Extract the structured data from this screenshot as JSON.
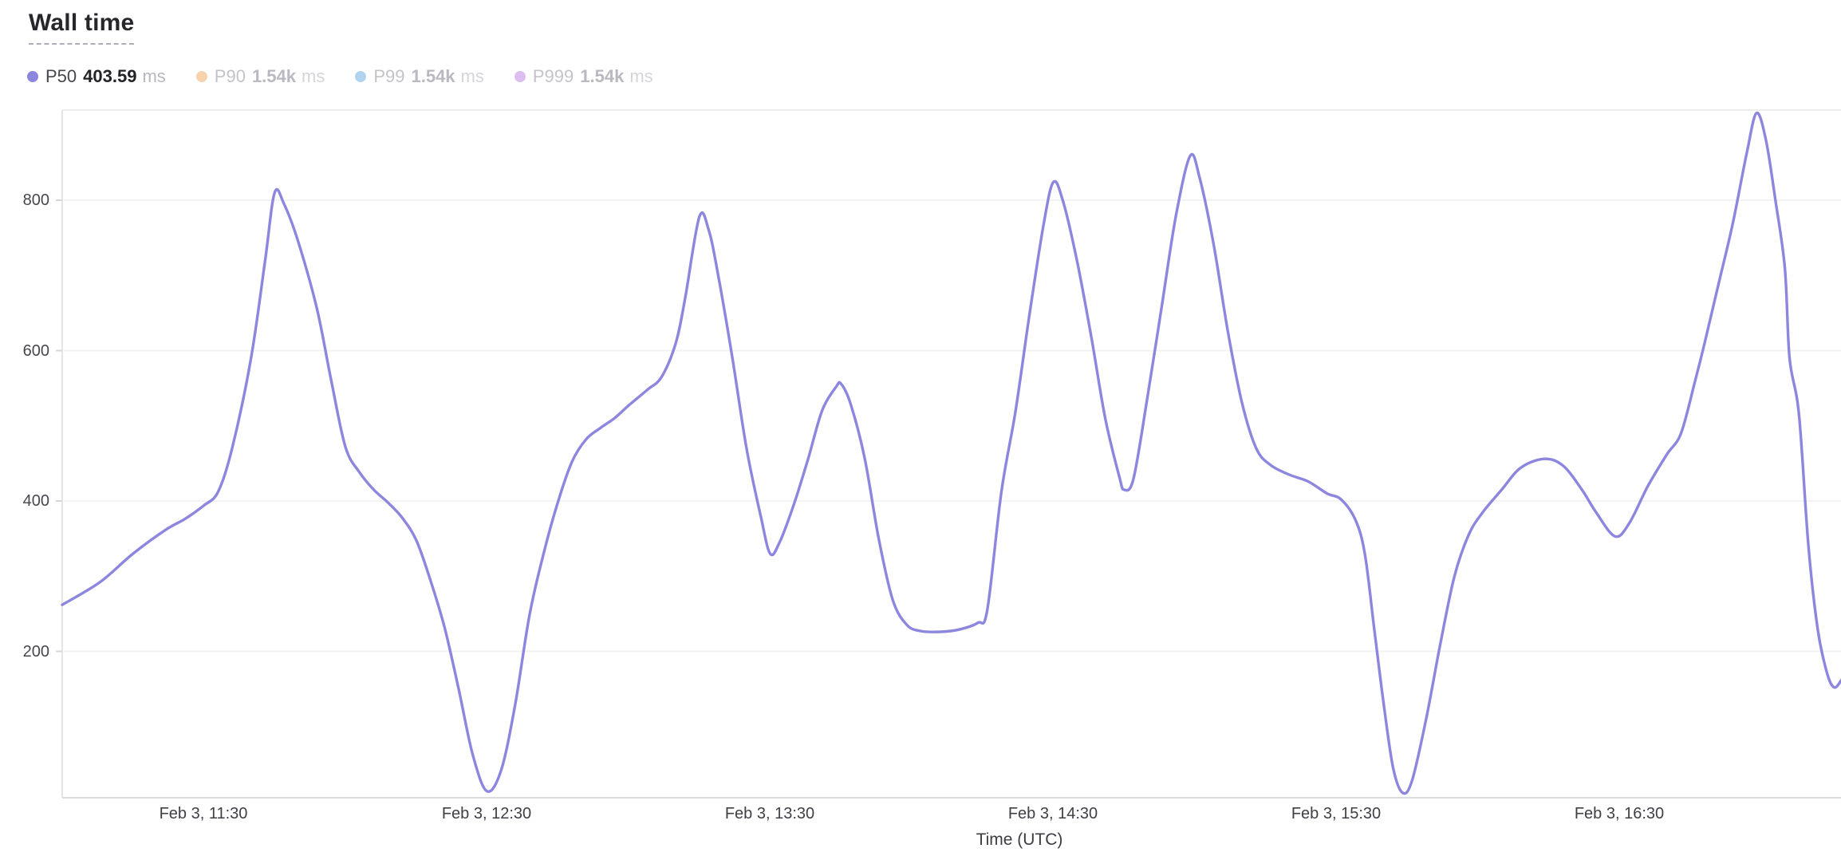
{
  "title": "Wall time",
  "legend": [
    {
      "label": "P50",
      "value": "403.59",
      "unit": "ms",
      "color": "#8d86de",
      "dimmed": false
    },
    {
      "label": "P90",
      "value": "1.54k",
      "unit": "ms",
      "color": "#f6d3ac",
      "dimmed": true
    },
    {
      "label": "P99",
      "value": "1.54k",
      "unit": "ms",
      "color": "#aed4f2",
      "dimmed": true
    },
    {
      "label": "P999",
      "value": "1.54k",
      "unit": "ms",
      "color": "#ddbef0",
      "dimmed": true
    }
  ],
  "chart_data": {
    "type": "line",
    "title": "Wall time",
    "series": [
      {
        "name": "P50",
        "unit": "ms",
        "current_value": "403.59"
      }
    ],
    "line_color": "#8d86de",
    "xlabel": "Time (UTC)",
    "x_ticks": [
      "Feb 3, 11:30",
      "Feb 3, 12:30",
      "Feb 3, 13:30",
      "Feb 3, 14:30",
      "Feb 3, 15:30",
      "Feb 3, 16:30"
    ],
    "y_ticks": [
      200,
      400,
      600,
      800
    ],
    "ylim": [
      0,
      920
    ],
    "x_range_minutes_from_11_00_utc": [
      0,
      377
    ],
    "grid": "horizontal-only",
    "legend_position": "top-left",
    "points_t_minutes_vs_ms": [
      [
        0,
        262
      ],
      [
        8,
        292
      ],
      [
        15,
        330
      ],
      [
        22,
        362
      ],
      [
        26,
        376
      ],
      [
        30,
        394
      ],
      [
        33,
        412
      ],
      [
        36,
        470
      ],
      [
        40,
        590
      ],
      [
        43,
        720
      ],
      [
        45,
        810
      ],
      [
        47,
        795
      ],
      [
        50,
        745
      ],
      [
        54,
        655
      ],
      [
        57,
        560
      ],
      [
        60,
        472
      ],
      [
        63,
        438
      ],
      [
        66,
        415
      ],
      [
        69,
        398
      ],
      [
        72,
        378
      ],
      [
        75,
        348
      ],
      [
        78,
        295
      ],
      [
        81,
        232
      ],
      [
        84,
        150
      ],
      [
        87,
        62
      ],
      [
        90,
        14
      ],
      [
        93,
        42
      ],
      [
        96,
        130
      ],
      [
        99,
        248
      ],
      [
        102,
        330
      ],
      [
        105,
        398
      ],
      [
        108,
        452
      ],
      [
        111,
        482
      ],
      [
        114,
        497
      ],
      [
        117,
        510
      ],
      [
        120,
        527
      ],
      [
        124,
        548
      ],
      [
        127,
        565
      ],
      [
        130,
        610
      ],
      [
        132,
        670
      ],
      [
        135,
        778
      ],
      [
        137,
        760
      ],
      [
        139,
        700
      ],
      [
        142,
        590
      ],
      [
        145,
        470
      ],
      [
        148,
        380
      ],
      [
        150,
        330
      ],
      [
        152,
        345
      ],
      [
        155,
        395
      ],
      [
        158,
        455
      ],
      [
        161,
        520
      ],
      [
        164,
        552
      ],
      [
        165,
        556
      ],
      [
        167,
        530
      ],
      [
        170,
        458
      ],
      [
        173,
        350
      ],
      [
        176,
        268
      ],
      [
        179,
        235
      ],
      [
        182,
        227
      ],
      [
        186,
        226
      ],
      [
        190,
        229
      ],
      [
        194,
        238
      ],
      [
        196,
        255
      ],
      [
        199,
        412
      ],
      [
        202,
        520
      ],
      [
        205,
        650
      ],
      [
        208,
        770
      ],
      [
        210,
        824
      ],
      [
        212,
        800
      ],
      [
        215,
        720
      ],
      [
        218,
        620
      ],
      [
        221,
        510
      ],
      [
        224,
        432
      ],
      [
        225,
        415
      ],
      [
        227,
        430
      ],
      [
        230,
        540
      ],
      [
        233,
        660
      ],
      [
        236,
        780
      ],
      [
        239,
        859
      ],
      [
        241,
        830
      ],
      [
        244,
        740
      ],
      [
        247,
        625
      ],
      [
        250,
        530
      ],
      [
        253,
        470
      ],
      [
        256,
        448
      ],
      [
        260,
        435
      ],
      [
        264,
        426
      ],
      [
        268,
        410
      ],
      [
        271,
        402
      ],
      [
        274,
        375
      ],
      [
        276,
        330
      ],
      [
        278,
        230
      ],
      [
        280,
        130
      ],
      [
        282,
        45
      ],
      [
        284,
        12
      ],
      [
        286,
        28
      ],
      [
        289,
        110
      ],
      [
        292,
        210
      ],
      [
        295,
        300
      ],
      [
        298,
        355
      ],
      [
        301,
        385
      ],
      [
        305,
        415
      ],
      [
        309,
        444
      ],
      [
        314,
        456
      ],
      [
        318,
        447
      ],
      [
        322,
        415
      ],
      [
        325,
        385
      ],
      [
        329,
        353
      ],
      [
        332,
        370
      ],
      [
        336,
        420
      ],
      [
        340,
        462
      ],
      [
        343,
        490
      ],
      [
        346,
        560
      ],
      [
        348,
        610
      ],
      [
        351,
        690
      ],
      [
        354,
        770
      ],
      [
        357,
        865
      ],
      [
        359,
        916
      ],
      [
        361,
        880
      ],
      [
        363,
        800
      ],
      [
        365,
        710
      ],
      [
        366,
        590
      ],
      [
        368,
        515
      ],
      [
        370,
        340
      ],
      [
        372,
        228
      ],
      [
        374,
        170
      ],
      [
        375.5,
        152
      ],
      [
        377,
        162
      ]
    ]
  }
}
